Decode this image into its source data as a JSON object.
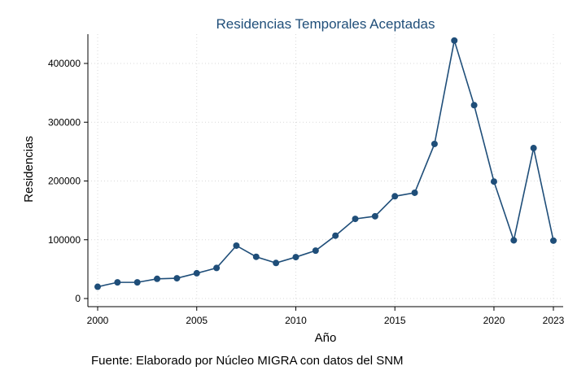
{
  "chart_data": {
    "type": "line",
    "title": "Residencias Temporales Aceptadas",
    "xlabel": "Año",
    "ylabel": "Residencias",
    "source_note": "Fuente: Elaborado por Núcleo MIGRA con datos del SNM",
    "x": [
      2000,
      2001,
      2002,
      2003,
      2004,
      2005,
      2006,
      2007,
      2008,
      2009,
      2010,
      2011,
      2012,
      2013,
      2014,
      2015,
      2016,
      2017,
      2018,
      2019,
      2020,
      2021,
      2022,
      2023
    ],
    "series": [
      {
        "values": [
          20000,
          27500,
          27500,
          33500,
          34500,
          43000,
          52000,
          90000,
          71000,
          60500,
          70500,
          81500,
          107000,
          135500,
          140000,
          174000,
          180000,
          263000,
          439000,
          329000,
          199000,
          99000,
          256000,
          98500
        ]
      }
    ],
    "xticks": [
      "2000",
      "2005",
      "2010",
      "2015",
      "2020",
      "2023"
    ],
    "xtick_values": [
      2000,
      2005,
      2010,
      2015,
      2020,
      2023
    ],
    "yticks": [
      "0",
      "100000",
      "200000",
      "300000",
      "400000"
    ],
    "ytick_values": [
      0,
      100000,
      200000,
      300000,
      400000
    ],
    "xlim": [
      2000,
      2023
    ],
    "ylim": [
      0,
      450000
    ],
    "grid": true,
    "colors": {
      "series": "#1f4e79",
      "title": "#1f4e79",
      "grid": "#d9d9d9",
      "axis": "#000000"
    }
  }
}
